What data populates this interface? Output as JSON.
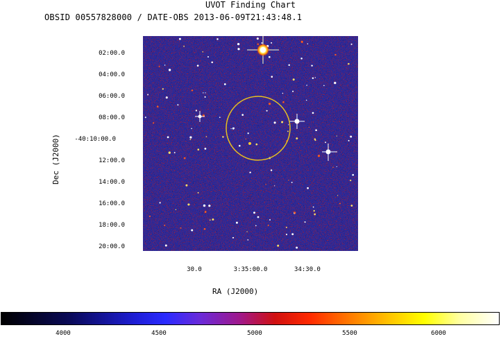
{
  "chart": {
    "title": "UVOT Finding Chart",
    "subtitle": "OBSID 00557828000 / DATE-OBS 2013-06-09T21:43:48.1",
    "xlabel": "RA (J2000)",
    "ylabel": "Dec (J2000)"
  },
  "dec_ticks": [
    "02:00.0",
    "04:00.0",
    "06:00.0",
    "08:00.0",
    "-40:10:00.0",
    "12:00.0",
    "14:00.0",
    "16:00.0",
    "18:00.0",
    "20:00.0"
  ],
  "ra_ticks": [
    "30.0",
    "3:35:00.0",
    "34:30.0"
  ],
  "colorbar": {
    "ticks": [
      "4000",
      "4500",
      "5000",
      "5500",
      "6000"
    ],
    "colors": [
      "#000000",
      "#1e1ed6",
      "#d01010",
      "#ffff00",
      "#ffffff"
    ]
  },
  "sky": {
    "background": "#2a2a9a",
    "region_color": "#e8c020"
  },
  "chart_data": {
    "type": "heatmap",
    "title": "UVOT Finding Chart",
    "subtitle": "OBSID 00557828000 / DATE-OBS 2013-06-09T21:43:48.1",
    "xlabel": "RA (J2000)",
    "ylabel": "Dec (J2000)",
    "x_ticks": [
      "30.0",
      "3:35:00.0",
      "34:30.0"
    ],
    "y_ticks": [
      "02:00.0",
      "04:00.0",
      "06:00.0",
      "08:00.0",
      "-40:10:00.0",
      "12:00.0",
      "14:00.0",
      "16:00.0",
      "18:00.0",
      "20:00.0"
    ],
    "colorbar_ticks": [
      4000,
      4500,
      5000,
      5500,
      6000
    ],
    "colormap": "black-blue-red-yellow-white"
  }
}
